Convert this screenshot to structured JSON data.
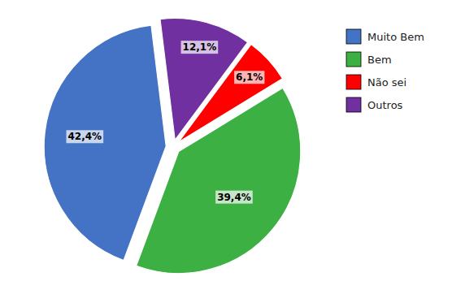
{
  "chart_data": {
    "type": "pie",
    "categories": [
      "Muito Bem",
      "Bem",
      "Não sei",
      "Outros"
    ],
    "values": [
      42.4,
      39.4,
      6.1,
      12.1
    ],
    "value_labels": [
      "42,4%",
      "39,4%",
      "6,1%",
      "12,1%"
    ],
    "colors": [
      "#4472C4",
      "#3CB043",
      "#FF0000",
      "#7030A0"
    ],
    "data_labels": true,
    "legend": "right"
  }
}
